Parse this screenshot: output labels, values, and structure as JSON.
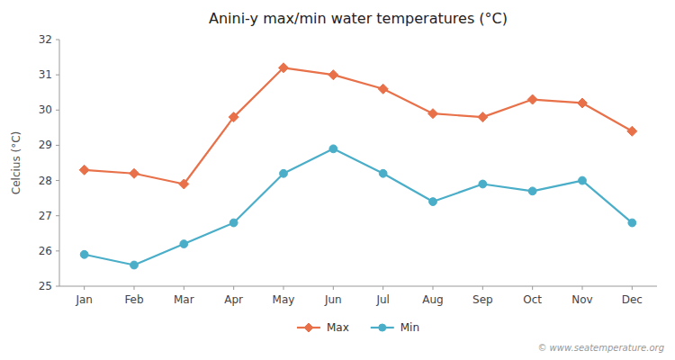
{
  "chart_data": {
    "type": "line",
    "title": "Anini-y max/min water temperatures (°C)",
    "y_label": "Celcius (°C)",
    "categories": [
      "Jan",
      "Feb",
      "Mar",
      "Apr",
      "May",
      "Jun",
      "Jul",
      "Aug",
      "Sep",
      "Oct",
      "Nov",
      "Dec"
    ],
    "series": [
      {
        "name": "Max",
        "color": "#e8714a",
        "marker": "diamond",
        "values": [
          28.3,
          28.2,
          27.9,
          29.8,
          31.2,
          31.0,
          30.6,
          29.9,
          29.8,
          30.3,
          30.2,
          29.4
        ]
      },
      {
        "name": "Min",
        "color": "#4aaec9",
        "marker": "circle",
        "values": [
          25.9,
          25.6,
          26.2,
          26.8,
          28.2,
          28.9,
          28.2,
          27.4,
          27.9,
          27.7,
          28.0,
          26.8
        ]
      }
    ],
    "ylim": [
      25,
      32
    ],
    "yticks": [
      25,
      26,
      27,
      28,
      29,
      30,
      31,
      32
    ],
    "grid": false,
    "legend": "bottom",
    "annotations": [
      "© www.seatemperature.org"
    ]
  }
}
